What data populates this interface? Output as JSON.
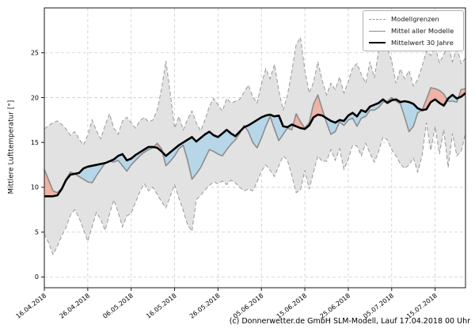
{
  "figure": {
    "footer": "(c) Donnerwetter.de GmbH SLM-Modell, Lauf 17.04.2018 00 Uhr"
  },
  "legend": {
    "items": [
      {
        "label": "Modellgrenzen",
        "style": "dashed-gray"
      },
      {
        "label": "Mittel aller Modelle",
        "style": "solid-gray"
      },
      {
        "label": "Mittelwert 30 Jahre",
        "style": "solid-black-thick"
      }
    ],
    "position": "upper-right"
  },
  "colors": {
    "band_fill": "#e2e2e2",
    "band_edge": "#999999",
    "warmer_fill": "#efb3a6",
    "colder_fill": "#b7d7e8",
    "model_mean_line": "#8c8c8c",
    "climate_mean_line": "#000000",
    "grid": "#cdcdcd",
    "spine": "#1a1a1a"
  },
  "chart_data": {
    "type": "line",
    "title": "",
    "xlabel": "",
    "ylabel": "Mittlere Lufttemperatur [°]",
    "ylim": [
      -1.2,
      30.0
    ],
    "yticks": [
      0,
      5,
      10,
      15,
      20,
      25
    ],
    "grid": "dashed, both axes",
    "legend_position": "upper right",
    "x_unit": "days (daily values starting 16.04.2018)",
    "xlim_days": [
      0,
      97
    ],
    "x_ticks": [
      {
        "day": 0,
        "label": "16.04.2018"
      },
      {
        "day": 10,
        "label": "26.04.2018"
      },
      {
        "day": 20,
        "label": "06.05.2018"
      },
      {
        "day": 30,
        "label": "16.05.2018"
      },
      {
        "day": 40,
        "label": "26.05.2018"
      },
      {
        "day": 50,
        "label": "05.06.2018"
      },
      {
        "day": 60,
        "label": "15.06.2018"
      },
      {
        "day": 70,
        "label": "25.06.2018"
      },
      {
        "day": 80,
        "label": "05.07.2018"
      },
      {
        "day": 90,
        "label": "15.07.2018"
      }
    ],
    "series": [
      {
        "name": "Modellgrenzen (obere Grenze)",
        "role": "upper",
        "style": "dashed gray, bounds gray band",
        "values": [
          16.5,
          16.9,
          17.2,
          17.4,
          17.0,
          16.5,
          15.8,
          16.2,
          15.4,
          14.7,
          15.8,
          17.5,
          16.3,
          15.4,
          16.9,
          18.2,
          16.6,
          15.9,
          17.4,
          17.8,
          17.2,
          16.6,
          17.4,
          17.8,
          17.3,
          17.5,
          18.6,
          21.0,
          24.1,
          20.5,
          16.6,
          17.9,
          16.4,
          17.6,
          18.5,
          17.2,
          16.3,
          17.5,
          19.0,
          19.9,
          19.2,
          18.5,
          19.9,
          19.4,
          19.6,
          19.8,
          20.6,
          21.4,
          20.1,
          19.4,
          21.5,
          23.2,
          22.1,
          23.7,
          20.8,
          18.6,
          20.3,
          22.9,
          25.9,
          26.7,
          23.0,
          20.5,
          21.7,
          24.0,
          21.9,
          20.3,
          21.6,
          20.9,
          22.3,
          20.5,
          21.8,
          23.3,
          23.8,
          22.6,
          21.6,
          24.0,
          22.2,
          25.2,
          26.8,
          25.5,
          24.1,
          21.6,
          23.2,
          22.1,
          23.0,
          21.3,
          22.0,
          23.5,
          25.2,
          24.7,
          25.7,
          23.9,
          24.8,
          25.8,
          24.0,
          25.7,
          23.8,
          24.4
        ]
      },
      {
        "name": "Modellgrenzen (untere Grenze)",
        "role": "lower",
        "style": "dashed gray, bounds gray band",
        "values": [
          4.8,
          3.8,
          2.5,
          3.4,
          4.6,
          5.5,
          6.9,
          7.5,
          6.6,
          5.3,
          4.0,
          5.6,
          7.2,
          6.4,
          5.2,
          7.0,
          8.6,
          7.2,
          5.6,
          6.8,
          7.1,
          8.3,
          9.5,
          10.4,
          9.6,
          10.0,
          9.2,
          8.4,
          7.7,
          9.0,
          10.3,
          8.8,
          7.4,
          5.8,
          5.1,
          8.6,
          9.1,
          9.7,
          10.2,
          10.6,
          10.4,
          10.7,
          10.3,
          10.8,
          10.5,
          10.0,
          9.6,
          9.8,
          9.6,
          10.6,
          11.8,
          12.5,
          11.9,
          11.2,
          12.4,
          13.5,
          13.0,
          11.3,
          9.4,
          9.7,
          11.9,
          9.8,
          11.7,
          13.5,
          12.9,
          12.9,
          14.2,
          13.0,
          14.3,
          12.0,
          13.1,
          14.7,
          14.6,
          13.5,
          14.9,
          13.8,
          12.8,
          14.0,
          15.6,
          15.3,
          14.2,
          13.5,
          12.6,
          12.1,
          12.5,
          13.3,
          11.7,
          13.5,
          17.2,
          14.1,
          16.8,
          13.7,
          16.4,
          12.2,
          16.0,
          13.5,
          14.0,
          16.0
        ]
      },
      {
        "name": "Mittel aller Modelle",
        "role": "model_mean",
        "style": "solid gray line; filled red above / blue below 30-year mean",
        "values": [
          12.0,
          10.8,
          9.6,
          9.4,
          9.9,
          10.9,
          11.7,
          11.5,
          11.2,
          10.9,
          10.6,
          10.5,
          11.3,
          12.0,
          12.7,
          12.9,
          12.8,
          13.0,
          12.4,
          11.8,
          12.5,
          13.0,
          13.5,
          13.9,
          14.2,
          14.4,
          14.9,
          14.3,
          12.4,
          12.9,
          13.5,
          14.3,
          14.7,
          13.0,
          10.9,
          11.5,
          12.2,
          13.2,
          14.2,
          14.0,
          13.7,
          13.5,
          14.2,
          14.8,
          15.3,
          16.0,
          16.9,
          16.2,
          15.0,
          14.4,
          15.5,
          16.8,
          17.9,
          16.5,
          15.2,
          15.9,
          16.6,
          16.4,
          18.2,
          17.3,
          16.6,
          17.2,
          19.3,
          20.3,
          18.7,
          17.2,
          15.9,
          16.2,
          17.3,
          16.9,
          17.5,
          17.7,
          16.8,
          17.7,
          17.9,
          18.6,
          18.6,
          18.9,
          19.5,
          19.6,
          20.0,
          19.6,
          19.3,
          17.8,
          16.2,
          16.8,
          18.3,
          18.6,
          19.8,
          21.1,
          21.0,
          20.8,
          20.4,
          19.6,
          19.6,
          19.5,
          20.9,
          21.0
        ]
      },
      {
        "name": "Mittelwert 30 Jahre",
        "role": "climate_mean",
        "style": "thick black line",
        "values": [
          9.0,
          9.0,
          9.0,
          9.1,
          9.8,
          10.8,
          11.4,
          11.5,
          11.6,
          12.1,
          12.3,
          12.4,
          12.5,
          12.6,
          12.7,
          12.9,
          13.1,
          13.5,
          13.7,
          13.0,
          13.2,
          13.6,
          13.9,
          14.2,
          14.5,
          14.5,
          14.4,
          14.0,
          13.5,
          13.9,
          14.3,
          14.7,
          15.0,
          15.3,
          15.6,
          15.1,
          15.5,
          15.9,
          16.2,
          15.8,
          15.6,
          16.0,
          16.4,
          16.0,
          15.7,
          16.2,
          16.7,
          16.9,
          17.2,
          17.5,
          17.8,
          18.0,
          18.1,
          17.9,
          18.0,
          16.8,
          16.7,
          17.0,
          16.8,
          16.6,
          16.5,
          16.9,
          17.8,
          18.1,
          18.0,
          17.7,
          17.4,
          17.2,
          17.5,
          17.4,
          18.0,
          18.3,
          17.9,
          18.6,
          18.4,
          19.0,
          19.2,
          19.4,
          19.8,
          19.4,
          19.7,
          19.8,
          19.5,
          19.6,
          19.5,
          19.3,
          18.8,
          18.6,
          18.7,
          19.5,
          19.8,
          19.4,
          19.1,
          19.9,
          20.3,
          19.9,
          20.1,
          20.5
        ]
      }
    ],
    "fills": [
      {
        "name": "model-range-band",
        "between": [
          "upper",
          "lower"
        ],
        "color": "#e2e2e2"
      },
      {
        "name": "warmer-than-climate",
        "between": [
          "model_mean",
          "climate_mean"
        ],
        "when": "model_mean > climate_mean",
        "color": "#efb3a6"
      },
      {
        "name": "colder-than-climate",
        "between": [
          "model_mean",
          "climate_mean"
        ],
        "when": "model_mean < climate_mean",
        "color": "#b7d7e8"
      }
    ]
  }
}
